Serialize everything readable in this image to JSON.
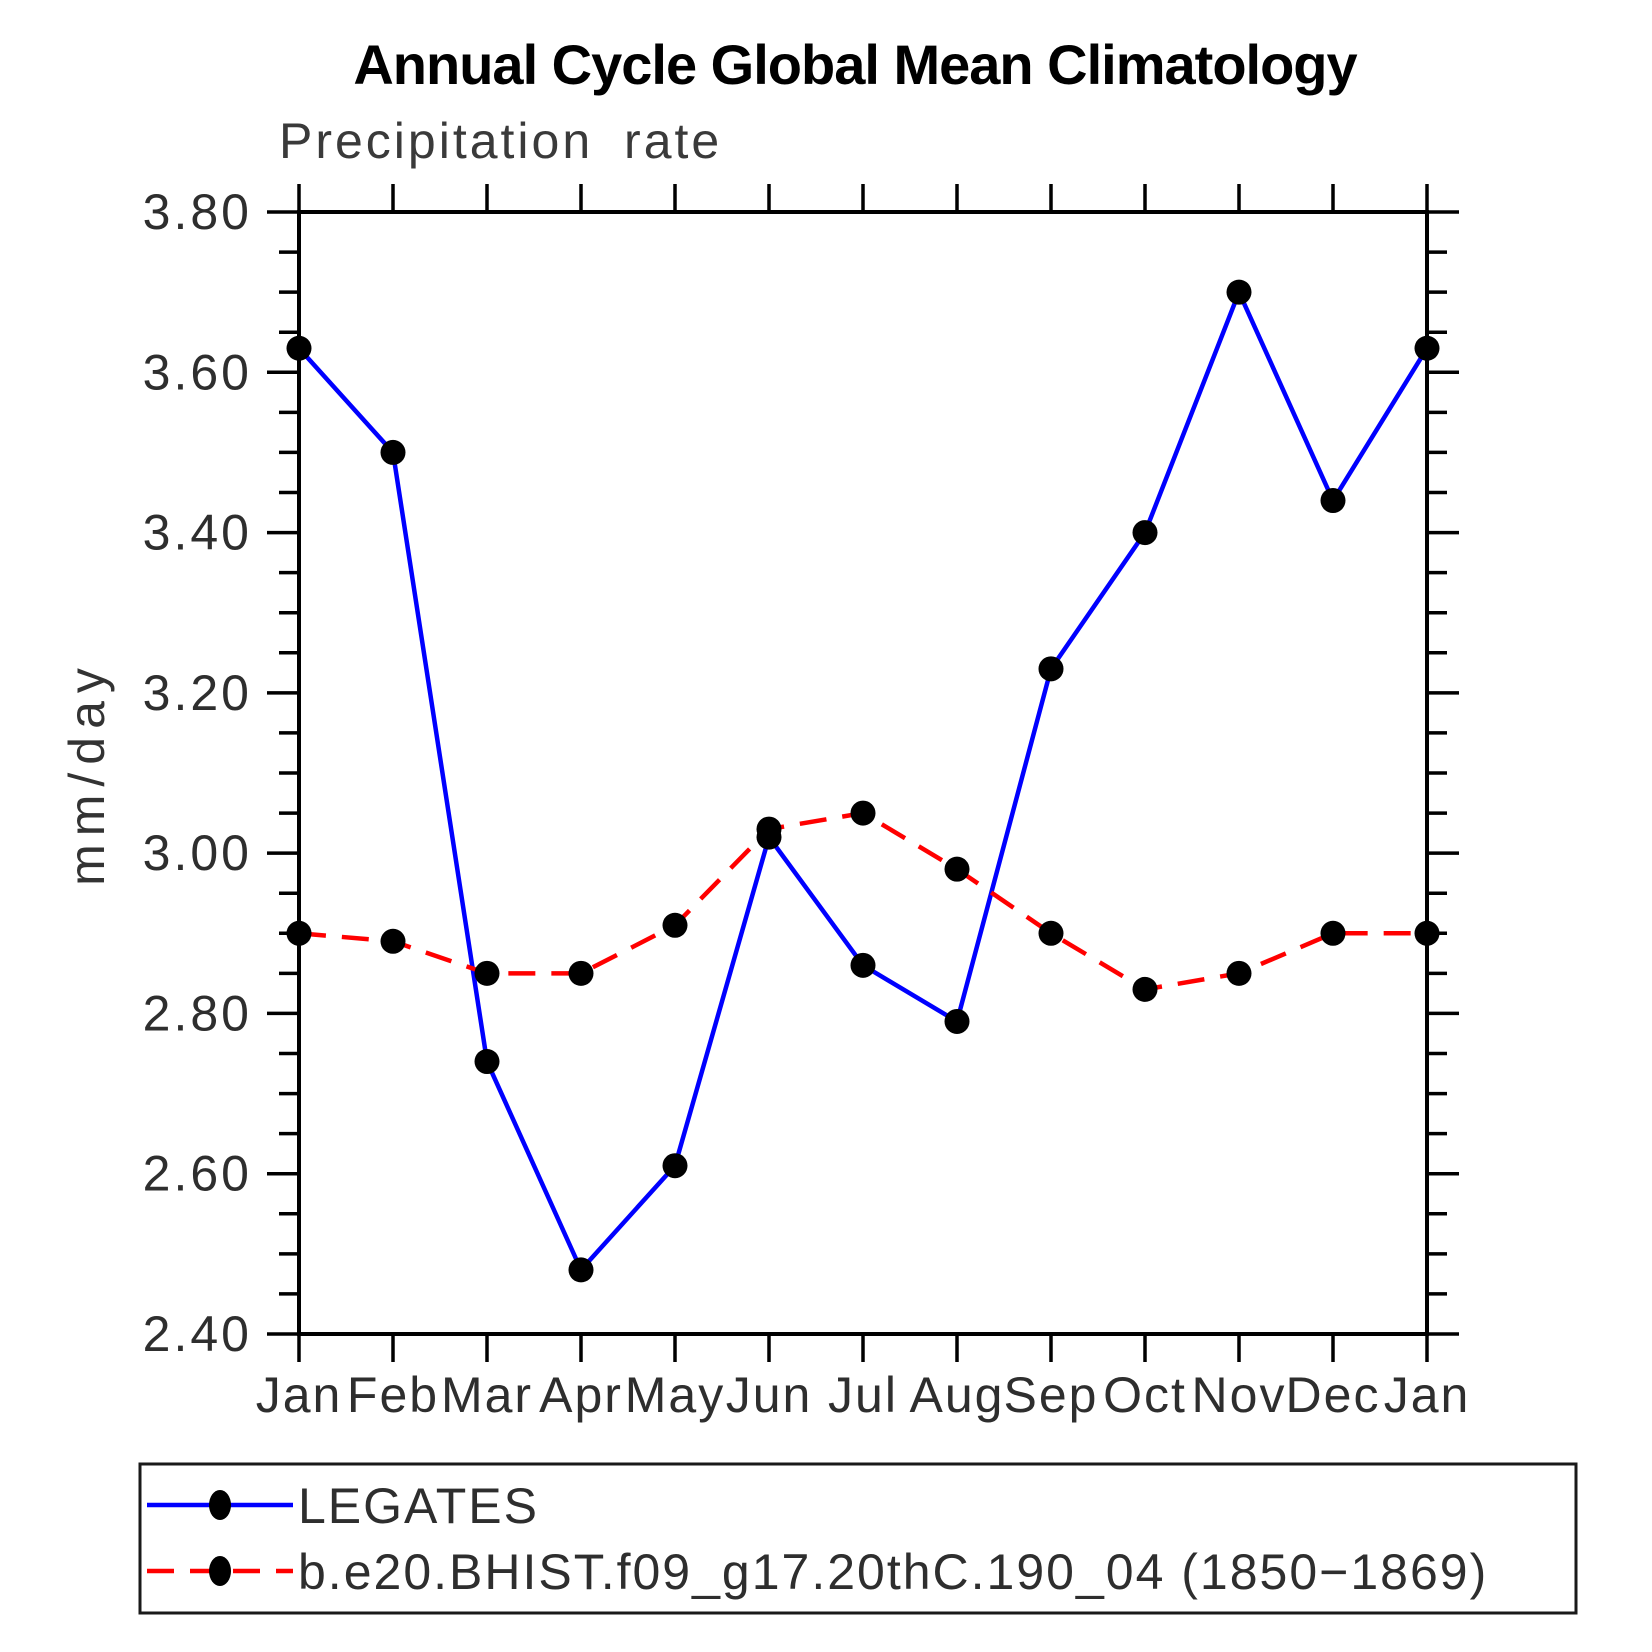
{
  "chart_data": {
    "type": "line",
    "title": "Annual Cycle Global Mean Climatology",
    "subtitle": "Precipitation rate",
    "ylabel": "mm/day",
    "xlabel": "",
    "ylim": [
      2.4,
      3.8
    ],
    "ytick_labels": [
      "2.40",
      "2.60",
      "2.80",
      "3.00",
      "3.20",
      "3.40",
      "3.60",
      "3.80"
    ],
    "ytick_major_step": 0.2,
    "ytick_minor_step": 0.05,
    "grid": false,
    "legend_position": "bottom-left-box",
    "categories": [
      "Jan",
      "Feb",
      "Mar",
      "Apr",
      "May",
      "Jun",
      "Jul",
      "Aug",
      "Sep",
      "Oct",
      "Nov",
      "Dec",
      "Jan"
    ],
    "series": [
      {
        "name": "LEGATES",
        "line_color": "#0000ff",
        "line_style": "solid",
        "marker": "filled-circle",
        "marker_color": "#000000",
        "values": [
          3.63,
          3.5,
          2.74,
          2.48,
          2.61,
          3.02,
          2.86,
          2.79,
          3.23,
          3.4,
          3.7,
          3.44,
          3.63
        ]
      },
      {
        "name": "b.e20.BHIST.f09_g17.20thC.190_04 (1850−1869)",
        "line_color": "#ff0000",
        "line_style": "dashed",
        "marker": "filled-circle",
        "marker_color": "#000000",
        "values": [
          2.9,
          2.89,
          2.85,
          2.85,
          2.91,
          3.03,
          3.05,
          2.98,
          2.9,
          2.83,
          2.85,
          2.9,
          2.9
        ]
      }
    ]
  },
  "colors": {
    "frame": "#000000",
    "tick": "#000000",
    "marker": "#000000",
    "legend_border": "#1a1a1a",
    "background": "#ffffff"
  }
}
